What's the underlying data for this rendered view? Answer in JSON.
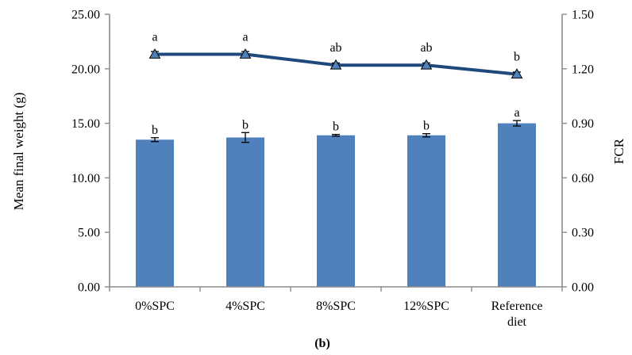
{
  "chart_data": {
    "type": "bar+line",
    "caption": "(b)",
    "categories": [
      [
        "0%SPC"
      ],
      [
        "4%SPC"
      ],
      [
        "8%SPC"
      ],
      [
        "12%SPC"
      ],
      [
        "Reference",
        "diet"
      ]
    ],
    "bars": {
      "axis": "left",
      "values": [
        13.5,
        13.7,
        13.9,
        13.9,
        15.0
      ],
      "errors": [
        0.18,
        0.45,
        0.08,
        0.15,
        0.25
      ],
      "letters": [
        "b",
        "b",
        "b",
        "b",
        "a"
      ],
      "color": "#4f81bd"
    },
    "line": {
      "axis": "right",
      "values": [
        1.28,
        1.28,
        1.22,
        1.22,
        1.17
      ],
      "errors": [
        0.015,
        0.015,
        0.012,
        0.012,
        0.012
      ],
      "letters": [
        "a",
        "a",
        "ab",
        "ab",
        "b"
      ],
      "color": "#1f497d",
      "marker": "triangle",
      "marker_color": "#4f81bd"
    },
    "left_axis": {
      "label": "Mean final weight (g)",
      "min": 0,
      "max": 25,
      "step": 5,
      "tick_labels": [
        "0.00",
        "5.00",
        "10.00",
        "15.00",
        "20.00",
        "25.00"
      ]
    },
    "right_axis": {
      "label": "FCR",
      "min": 0,
      "max": 1.5,
      "step": 0.3,
      "tick_labels": [
        "0.00",
        "0.30",
        "0.60",
        "0.90",
        "1.20",
        "1.50"
      ]
    },
    "grid": false,
    "legend": "none"
  }
}
